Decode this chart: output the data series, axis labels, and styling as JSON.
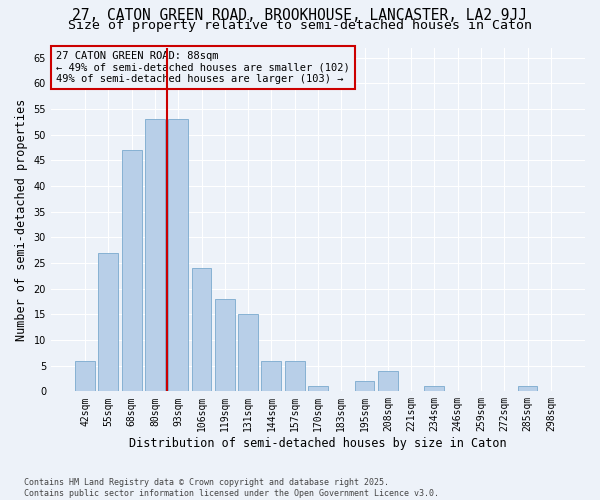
{
  "title": "27, CATON GREEN ROAD, BROOKHOUSE, LANCASTER, LA2 9JJ",
  "subtitle": "Size of property relative to semi-detached houses in Caton",
  "xlabel": "Distribution of semi-detached houses by size in Caton",
  "ylabel": "Number of semi-detached properties",
  "categories": [
    "42sqm",
    "55sqm",
    "68sqm",
    "80sqm",
    "93sqm",
    "106sqm",
    "119sqm",
    "131sqm",
    "144sqm",
    "157sqm",
    "170sqm",
    "183sqm",
    "195sqm",
    "208sqm",
    "221sqm",
    "234sqm",
    "246sqm",
    "259sqm",
    "272sqm",
    "285sqm",
    "298sqm"
  ],
  "values": [
    6,
    27,
    47,
    53,
    53,
    24,
    18,
    15,
    6,
    6,
    1,
    0,
    2,
    4,
    0,
    1,
    0,
    0,
    0,
    1,
    0
  ],
  "bar_color": "#b8cfe8",
  "bar_edge_color": "#7aaace",
  "property_label": "27 CATON GREEN ROAD: 88sqm",
  "pct_smaller": 49,
  "pct_smaller_count": 102,
  "pct_larger": 49,
  "pct_larger_count": 103,
  "vline_color": "#cc0000",
  "annotation_box_edge_color": "#cc0000",
  "ylim": [
    0,
    67
  ],
  "yticks": [
    0,
    5,
    10,
    15,
    20,
    25,
    30,
    35,
    40,
    45,
    50,
    55,
    60,
    65
  ],
  "bg_color": "#edf2f9",
  "grid_color": "#ffffff",
  "footer_text": "Contains HM Land Registry data © Crown copyright and database right 2025.\nContains public sector information licensed under the Open Government Licence v3.0.",
  "title_fontsize": 10.5,
  "subtitle_fontsize": 9.5,
  "tick_fontsize": 7,
  "label_fontsize": 8.5,
  "annotation_fontsize": 7.5,
  "footer_fontsize": 6
}
